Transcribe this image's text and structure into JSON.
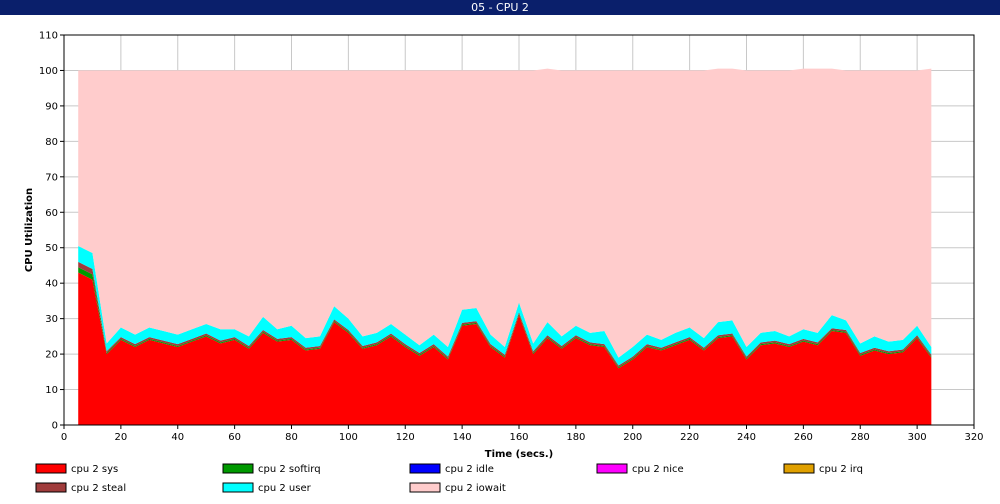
{
  "window": {
    "title": "05 - CPU 2"
  },
  "chart_data": {
    "type": "area",
    "stacked": true,
    "xlabel": "Time (secs.)",
    "ylabel": "CPU Utilization",
    "xlim": [
      0,
      320
    ],
    "ylim": [
      0,
      110
    ],
    "xticks": [
      0,
      20,
      40,
      60,
      80,
      100,
      120,
      140,
      160,
      180,
      200,
      220,
      240,
      260,
      280,
      300,
      320
    ],
    "yticks": [
      0,
      10,
      20,
      30,
      40,
      50,
      60,
      70,
      80,
      90,
      100,
      110
    ],
    "grid": true,
    "legend_position": "bottom",
    "x": [
      5,
      10,
      15,
      20,
      25,
      30,
      35,
      40,
      45,
      50,
      55,
      60,
      65,
      70,
      75,
      80,
      85,
      90,
      95,
      100,
      105,
      110,
      115,
      120,
      125,
      130,
      135,
      140,
      145,
      150,
      155,
      160,
      165,
      170,
      175,
      180,
      185,
      190,
      195,
      200,
      205,
      210,
      215,
      220,
      225,
      230,
      235,
      240,
      245,
      250,
      255,
      260,
      265,
      270,
      275,
      280,
      285,
      290,
      295,
      300,
      305
    ],
    "series": [
      {
        "name": "cpu 2 sys",
        "color": "#ff0000",
        "values": [
          43,
          41,
          20,
          24,
          22,
          24,
          23,
          22,
          23.5,
          25,
          23,
          24,
          21.5,
          26,
          23.5,
          24,
          21,
          21.5,
          29,
          26,
          21.5,
          22.5,
          25,
          22,
          19.5,
          22,
          18.5,
          28,
          28.5,
          22,
          19,
          31,
          20,
          24.5,
          21.5,
          24.5,
          22.5,
          22,
          16,
          18.5,
          22,
          21,
          22.5,
          24,
          21,
          24.5,
          25,
          18.5,
          22.5,
          23,
          22,
          23.5,
          22.5,
          26.5,
          26,
          19.5,
          21,
          20,
          20.5,
          24.5,
          19
        ]
      },
      {
        "name": "cpu 2 softirq",
        "color": "#009900",
        "values": [
          1.5,
          1.5,
          0.3,
          0.3,
          0.3,
          0.3,
          0.3,
          0.3,
          0.3,
          0.3,
          0.3,
          0.3,
          0.3,
          0.3,
          0.3,
          0.3,
          0.3,
          0.3,
          0.3,
          0.3,
          0.3,
          0.3,
          0.3,
          0.3,
          0.3,
          0.3,
          0.3,
          0.3,
          0.3,
          0.3,
          0.3,
          0.3,
          0.3,
          0.3,
          0.3,
          0.3,
          0.3,
          0.3,
          0.3,
          0.3,
          0.3,
          0.3,
          0.3,
          0.3,
          0.3,
          0.3,
          0.3,
          0.3,
          0.3,
          0.3,
          0.3,
          0.3,
          0.3,
          0.3,
          0.3,
          0.3,
          0.3,
          0.3,
          0.3,
          0.3,
          0.3
        ]
      },
      {
        "name": "cpu 2 idle",
        "color": "#0000ff",
        "values": [
          0,
          0,
          0,
          0,
          0,
          0,
          0,
          0,
          0,
          0,
          0,
          0,
          0,
          0,
          0,
          0,
          0,
          0,
          0,
          0,
          0,
          0,
          0,
          0,
          0,
          0,
          0,
          0,
          0,
          0,
          0,
          0,
          0,
          0,
          0,
          0,
          0,
          0,
          0,
          0,
          0,
          0,
          0,
          0,
          0,
          0,
          0,
          0,
          0,
          0,
          0,
          0,
          0,
          0,
          0,
          0,
          0,
          0,
          0,
          0,
          0
        ]
      },
      {
        "name": "cpu 2 nice",
        "color": "#ff00ff",
        "values": [
          0,
          0,
          0,
          0,
          0,
          0,
          0,
          0,
          0,
          0,
          0,
          0,
          0,
          0,
          0,
          0,
          0,
          0,
          0,
          0,
          0,
          0,
          0,
          0,
          0,
          0,
          0,
          0,
          0,
          0,
          0,
          0,
          0,
          0,
          0,
          0,
          0,
          0,
          0,
          0,
          0,
          0,
          0,
          0,
          0,
          0,
          0,
          0,
          0,
          0,
          0,
          0,
          0,
          0,
          0,
          0,
          0,
          0,
          0,
          0,
          0
        ]
      },
      {
        "name": "cpu 2 irq",
        "color": "#e0a000",
        "values": [
          0,
          0,
          0,
          0,
          0,
          0,
          0,
          0,
          0,
          0,
          0,
          0,
          0,
          0,
          0,
          0,
          0,
          0,
          0,
          0,
          0,
          0,
          0,
          0,
          0,
          0,
          0,
          0,
          0,
          0,
          0,
          0,
          0,
          0,
          0,
          0,
          0,
          0,
          0,
          0,
          0,
          0,
          0,
          0,
          0,
          0,
          0,
          0,
          0,
          0,
          0,
          0,
          0,
          0,
          0,
          0,
          0,
          0,
          0,
          0,
          0
        ]
      },
      {
        "name": "cpu 2 steal",
        "color": "#a03c3c",
        "values": [
          1.5,
          1.5,
          0.5,
          0.5,
          0.5,
          0.5,
          0.5,
          0.5,
          0.5,
          0.5,
          0.5,
          0.5,
          0.5,
          0.5,
          0.5,
          0.5,
          0.5,
          0.5,
          0.5,
          0.5,
          0.5,
          0.5,
          0.5,
          0.5,
          0.5,
          0.5,
          0.5,
          0.5,
          0.5,
          0.5,
          0.5,
          0.5,
          0.5,
          0.5,
          0.5,
          0.5,
          0.5,
          0.5,
          0.5,
          0.5,
          0.5,
          0.5,
          0.5,
          0.5,
          0.5,
          0.5,
          0.5,
          0.5,
          0.5,
          0.5,
          0.5,
          0.5,
          0.5,
          0.5,
          0.5,
          0.5,
          0.5,
          0.5,
          0.5,
          0.5,
          0.5
        ]
      },
      {
        "name": "cpu 2 user",
        "color": "#00ffff",
        "values": [
          4.5,
          4.5,
          2.2,
          2.7,
          2.7,
          2.7,
          2.7,
          2.7,
          2.7,
          2.7,
          3.2,
          2.2,
          2.7,
          3.7,
          2.7,
          3.2,
          2.7,
          2.7,
          3.7,
          3.2,
          2.7,
          2.7,
          2.7,
          2.7,
          2.2,
          2.7,
          2.7,
          3.7,
          3.7,
          2.7,
          2.2,
          2.7,
          2.2,
          3.7,
          2.7,
          2.7,
          2.7,
          3.7,
          2.2,
          2.7,
          2.7,
          2.2,
          2.7,
          2.7,
          2.7,
          3.7,
          3.7,
          2.7,
          2.7,
          2.7,
          2.2,
          2.7,
          2.7,
          3.7,
          2.7,
          2.7,
          3.2,
          2.7,
          2.7,
          2.7,
          2.2
        ]
      },
      {
        "name": "cpu 2 iowait",
        "color": "#ffcccc",
        "values": [
          49.5,
          51.5,
          77,
          72.5,
          74.5,
          72.5,
          73.5,
          74.5,
          73,
          71.5,
          73,
          73,
          75,
          69.5,
          73,
          72,
          75.5,
          75,
          66.5,
          70,
          75,
          74,
          71.5,
          74.5,
          77.5,
          74.5,
          78,
          67.5,
          67,
          74.5,
          78,
          65.5,
          77,
          71.5,
          75,
          72,
          74,
          73.5,
          81,
          78,
          74.5,
          76,
          74,
          72.5,
          75.5,
          71.5,
          71,
          78,
          74,
          73.5,
          75,
          73.5,
          74.5,
          69.5,
          70.5,
          77,
          75,
          76.5,
          76,
          72,
          78.5
        ]
      }
    ]
  }
}
